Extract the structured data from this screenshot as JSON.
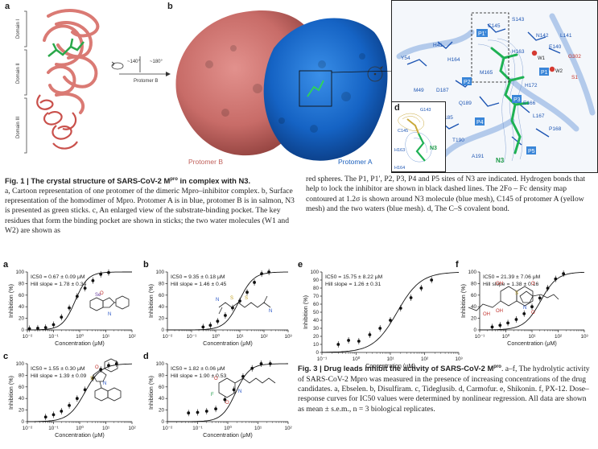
{
  "fig1": {
    "panel_a": {
      "letter": "a",
      "domains": [
        "Domain I",
        "Domain II",
        "Domain III"
      ]
    },
    "panel_b": {
      "letter": "b",
      "rotation_left": "~140°",
      "rotation_right": "~180°",
      "protomer_b_arrow": "Protomer B",
      "protomer_b": "Protomer B",
      "protomer_a": "Protomer A"
    },
    "panel_c": {
      "letter": "c",
      "sites": [
        "P1'",
        "P1",
        "P2",
        "P3",
        "P4",
        "P5"
      ],
      "residues": [
        "C145",
        "S143",
        "N142",
        "L141",
        "E140",
        "H41",
        "Y54",
        "H164",
        "H163",
        "H172",
        "M49",
        "M165",
        "D187",
        "Q189",
        "E166",
        "F185",
        "L167",
        "P168",
        "T190",
        "A191",
        "S1",
        "G302"
      ],
      "waters": [
        "W1",
        "W2"
      ],
      "inhibitor": "N3"
    },
    "panel_d": {
      "letter": "d",
      "labels": [
        "G143",
        "C145",
        "H163",
        "H164",
        "N3"
      ]
    },
    "caption": {
      "title": "Fig. 1 | The crystal structure of SARS-CoV-2 M",
      "title_sup": "pro",
      "title_end": " in complex with N3.",
      "body": "a, Cartoon representation of one protomer of the dimeric Mpro–inhibitor complex. b, Surface representation of the homodimer of Mpro. Protomer A is in blue, protomer B is in salmon, N3 is presented as green sticks. c, An enlarged view of the substrate-binding pocket. The key residues that form the binding pocket are shown in sticks; the two water molecules (W1 and W2) are shown as",
      "body_right": "red spheres. The P1, P1′, P2, P3, P4 and P5 sites of N3 are indicated. Hydrogen bonds that help to lock the inhibitor are shown in black dashed lines. The 2Fo – Fc density map contoured at 1.2σ is shown around N3 molecule (blue mesh), C145 of protomer A (yellow mesh) and the two waters (blue mesh). d, The C–S covalent bond."
    }
  },
  "fig3": {
    "caption": {
      "title": "Fig. 3 | Drug leads inhibit the activity of SARS-CoV-2 M",
      "title_sup": "pro",
      "title_end": ". a–f, The hydrolytic activity of SARS-CoV-2 Mpro was measured in the presence of increasing concentrations of the drug candidates. a, Ebselen. b, Disulfiram. c, Tideglusib. d, Carmofur. e, Shikonin. f, PX-12. Dose–response curves for IC50 values were determined by nonlinear regression. All data are shown as mean ± s.e.m., n = 3 biological replicates."
    }
  },
  "chart_data": [
    {
      "type": "scatter",
      "panel": "a",
      "ic50_text": "IC50 = 0.67 ± 0.09 μM",
      "hill_text": "Hill slope = 1.78 ± 0.34",
      "xlabel": "Concentration (μM)",
      "ylabel": "Inhibition (%)",
      "xscale": "log",
      "xlim": [
        0.01,
        100
      ],
      "ylim": [
        0,
        100
      ],
      "xticks": [
        "10⁻²",
        "10⁻¹",
        "10⁰",
        "10¹",
        "10²"
      ],
      "yticks": [
        "0",
        "20",
        "40",
        "60",
        "80",
        "100"
      ],
      "fit": {
        "ic50": 0.67,
        "hill": 1.78
      },
      "x": [
        0.012,
        0.025,
        0.05,
        0.1,
        0.2,
        0.4,
        0.8,
        1.6,
        3.2,
        6.4,
        12.8
      ],
      "y": [
        2,
        3,
        4,
        9,
        22,
        38,
        58,
        72,
        85,
        96,
        99
      ]
    },
    {
      "type": "scatter",
      "panel": "b",
      "ic50_text": "IC50 = 9.35 ± 0.18 μM",
      "hill_text": "Hill slope = 1.46 ± 0.45",
      "xlabel": "Concentration (μM)",
      "ylabel": "Inhibition (%)",
      "xscale": "log",
      "xlim": [
        0.01,
        1000
      ],
      "ylim": [
        0,
        100
      ],
      "xticks": [
        "10⁻²",
        "10⁻¹",
        "10⁰",
        "10¹",
        "10²",
        "10³"
      ],
      "yticks": [
        "0",
        "20",
        "40",
        "60",
        "80",
        "100"
      ],
      "fit": {
        "ic50": 9.35,
        "hill": 1.46
      },
      "x": [
        0.3,
        0.6,
        1.2,
        2.5,
        5,
        10,
        20,
        40,
        80,
        160
      ],
      "y": [
        5,
        8,
        15,
        25,
        38,
        50,
        65,
        82,
        97,
        100
      ]
    },
    {
      "type": "scatter",
      "panel": "c",
      "ic50_text": "IC50 = 1.55 ± 0.30 μM",
      "hill_text": "Hill slope = 1.39 ± 0.09",
      "xlabel": "Concentration (μM)",
      "ylabel": "Inhibition (%)",
      "xscale": "log",
      "xlim": [
        0.01,
        100
      ],
      "ylim": [
        0,
        100
      ],
      "xticks": [
        "10⁻²",
        "10⁻¹",
        "10⁰",
        "10¹",
        "10²"
      ],
      "yticks": [
        "0",
        "20",
        "40",
        "60",
        "80",
        "100"
      ],
      "fit": {
        "ic50": 1.55,
        "hill": 1.39
      },
      "x": [
        0.05,
        0.1,
        0.2,
        0.4,
        0.8,
        1.6,
        3.2,
        6.4,
        12.8,
        25.6
      ],
      "y": [
        8,
        12,
        18,
        28,
        40,
        55,
        75,
        90,
        97,
        100
      ]
    },
    {
      "type": "scatter",
      "panel": "d",
      "ic50_text": "IC50 = 1.82 ± 0.06 μM",
      "hill_text": "Hill slope = 1.90 ± 0.53",
      "xlabel": "Concentration (μM)",
      "ylabel": "Inhibition (%)",
      "xscale": "log",
      "xlim": [
        0.01,
        100
      ],
      "ylim": [
        0,
        100
      ],
      "xticks": [
        "10⁻²",
        "10⁻¹",
        "10⁰",
        "10¹",
        "10²"
      ],
      "yticks": [
        "0",
        "20",
        "40",
        "60",
        "80",
        "100"
      ],
      "fit": {
        "ic50": 1.82,
        "hill": 1.9
      },
      "x": [
        0.05,
        0.1,
        0.2,
        0.4,
        0.8,
        1.6,
        3.2,
        6.4,
        12.8,
        25.6
      ],
      "y": [
        15,
        16,
        18,
        22,
        38,
        55,
        78,
        92,
        100,
        102
      ]
    },
    {
      "type": "scatter",
      "panel": "e",
      "ic50_text": "IC50 = 15.75 ± 8.22 μM",
      "hill_text": "Hill slope = 1.26 ± 0.31",
      "xlabel": "Concentration (μM)",
      "ylabel": "Inhibition (%)",
      "xscale": "log",
      "xlim": [
        0.1,
        1000
      ],
      "ylim": [
        0,
        100
      ],
      "xticks": [
        "10⁻¹",
        "10⁰",
        "10¹",
        "10²",
        "10³"
      ],
      "yticks": [
        "0",
        "10",
        "20",
        "30",
        "40",
        "50",
        "60",
        "70",
        "80",
        "90",
        "100"
      ],
      "fit": {
        "ic50": 15.75,
        "hill": 1.26
      },
      "x": [
        0.3,
        0.6,
        1.2,
        2.5,
        5,
        10,
        20,
        40,
        80,
        160
      ],
      "y": [
        10,
        15,
        14,
        22,
        30,
        40,
        55,
        68,
        80,
        90
      ]
    },
    {
      "type": "scatter",
      "panel": "f",
      "ic50_text": "IC50 = 21.39 ± 7.06 μM",
      "hill_text": "Hill slope = 1.38 ± 0.16",
      "xlabel": "Concentration (μM)",
      "ylabel": "Inhibition (%)",
      "xscale": "log",
      "xlim": [
        0.1,
        1000
      ],
      "ylim": [
        0,
        100
      ],
      "xticks": [
        "10⁻¹",
        "10⁰",
        "10¹",
        "10²",
        "10³"
      ],
      "yticks": [
        "0",
        "20",
        "40",
        "60",
        "80",
        "100"
      ],
      "fit": {
        "ic50": 21.39,
        "hill": 1.38
      },
      "x": [
        0.3,
        0.6,
        1.2,
        2.5,
        5,
        10,
        20,
        40,
        80,
        160
      ],
      "y": [
        5,
        8,
        12,
        18,
        28,
        40,
        55,
        72,
        88,
        97
      ]
    }
  ]
}
